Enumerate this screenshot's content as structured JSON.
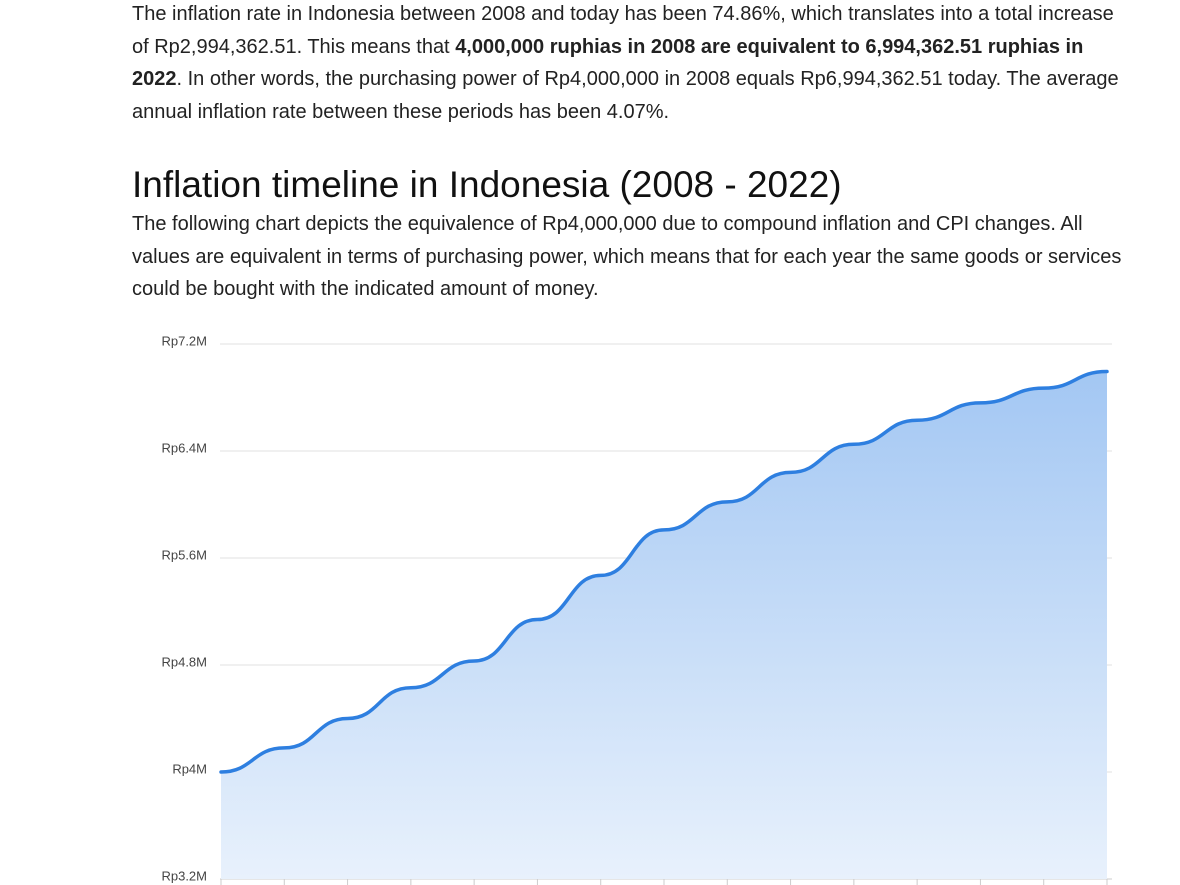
{
  "article": {
    "paragraph1": [
      "The inflation rate in Indonesia between 2008 and today has been 74.86%, which translates into a total increase of Rp2,994,362.51. This means that ",
      "4,000,000 ruphias in 2008 are equivalent to 6,994,362.51 ruphias in 2022",
      ". In other words, the purchasing power of Rp4,000,000 in 2008 equals Rp6,994,362.51 today. The average annual inflation rate between these periods has been 4.07%."
    ],
    "heading": "Inflation timeline in Indonesia (2008 - 2022)",
    "paragraph2": "The following chart depicts the equivalence of Rp4,000,000 due to compound inflation and CPI changes. All values are equivalent in terms of purchasing power, which means that for each year the same goods or services could be bought with the indicated amount of money."
  },
  "chart_data": {
    "type": "area",
    "categories": [
      null,
      null,
      null,
      null,
      null,
      null,
      null,
      null,
      null,
      null,
      null,
      null,
      null,
      null,
      null
    ],
    "values": [
      4000000,
      4180000,
      4400000,
      4630000,
      4830000,
      5140000,
      5470000,
      5810000,
      6020000,
      6240000,
      6450000,
      6630000,
      6760000,
      6870000,
      6994362.51
    ],
    "color": "#2e7fe0",
    "ylim": [
      3200000,
      7200000
    ],
    "yticks": [
      {
        "value": 3200000,
        "label": "Rp3.2M"
      },
      {
        "value": 4000000,
        "label": "Rp4M"
      },
      {
        "value": 4800000,
        "label": "Rp4.8M"
      },
      {
        "value": 5600000,
        "label": "Rp5.6M"
      },
      {
        "value": 6400000,
        "label": "Rp6.4M"
      },
      {
        "value": 7200000,
        "label": "Rp7.2M"
      }
    ],
    "grid": true
  }
}
